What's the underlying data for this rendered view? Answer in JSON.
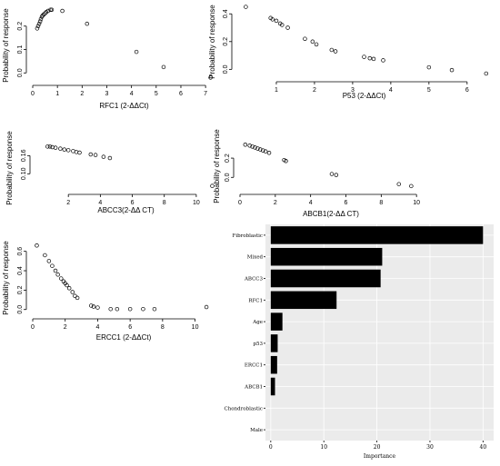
{
  "chart_data": [
    {
      "type": "scatter",
      "ylabel": "Probability of response",
      "xlabel": "RFC1 (2-ΔΔCt)",
      "xticks": [
        0,
        1,
        2,
        3,
        4,
        5,
        6,
        7
      ],
      "yticks": [
        0.0,
        0.1,
        0.2
      ],
      "xlim": [
        0,
        7.4
      ],
      "ylim": [
        -0.03,
        0.3
      ],
      "points": [
        [
          0.18,
          0.19
        ],
        [
          0.22,
          0.2
        ],
        [
          0.26,
          0.21
        ],
        [
          0.3,
          0.22
        ],
        [
          0.33,
          0.23
        ],
        [
          0.37,
          0.24
        ],
        [
          0.4,
          0.245
        ],
        [
          0.45,
          0.25
        ],
        [
          0.5,
          0.255
        ],
        [
          0.55,
          0.26
        ],
        [
          0.62,
          0.265
        ],
        [
          0.72,
          0.27
        ],
        [
          0.77,
          0.27
        ],
        [
          1.2,
          0.265
        ],
        [
          2.2,
          0.21
        ],
        [
          4.2,
          0.09
        ],
        [
          5.3,
          0.025
        ],
        [
          7.2,
          -0.02
        ]
      ]
    },
    {
      "type": "scatter",
      "ylabel": "Probability of response",
      "xlabel": "P53 (2-ΔΔCt)",
      "xticks": [
        1,
        2,
        3,
        4,
        5,
        6
      ],
      "yticks": [
        0.0,
        0.2,
        0.4
      ],
      "xlim": [
        0,
        6.6
      ],
      "ylim": [
        -0.05,
        0.48
      ],
      "points": [
        [
          0.2,
          0.45
        ],
        [
          0.85,
          0.37
        ],
        [
          0.9,
          0.36
        ],
        [
          1.0,
          0.35
        ],
        [
          1.1,
          0.33
        ],
        [
          1.15,
          0.32
        ],
        [
          1.3,
          0.3
        ],
        [
          1.75,
          0.22
        ],
        [
          1.95,
          0.2
        ],
        [
          2.05,
          0.18
        ],
        [
          2.45,
          0.14
        ],
        [
          2.55,
          0.13
        ],
        [
          3.3,
          0.09
        ],
        [
          3.45,
          0.08
        ],
        [
          3.55,
          0.075
        ],
        [
          3.8,
          0.065
        ],
        [
          5.0,
          0.015
        ],
        [
          5.6,
          -0.005
        ],
        [
          6.5,
          -0.03
        ]
      ]
    },
    {
      "type": "scatter",
      "ylabel": "Probability of response",
      "xlabel": "ABCC3(2-ΔΔ CT)",
      "xticks": [
        2,
        4,
        6,
        8,
        10
      ],
      "yticks": [
        0.1,
        0.16
      ],
      "xlim": [
        0,
        11.2
      ],
      "ylim": [
        0.05,
        0.2
      ],
      "points": [
        [
          0.7,
          0.19
        ],
        [
          0.85,
          0.19
        ],
        [
          1.0,
          0.188
        ],
        [
          1.2,
          0.186
        ],
        [
          1.5,
          0.183
        ],
        [
          1.75,
          0.18
        ],
        [
          2.0,
          0.178
        ],
        [
          2.3,
          0.175
        ],
        [
          2.5,
          0.172
        ],
        [
          2.7,
          0.17
        ],
        [
          3.4,
          0.164
        ],
        [
          3.7,
          0.162
        ],
        [
          4.2,
          0.156
        ],
        [
          4.6,
          0.152
        ],
        [
          11.0,
          0.06
        ]
      ]
    },
    {
      "type": "scatter",
      "ylabel": "Probability of response",
      "xlabel": "ABCB1(2-ΔΔ CT)",
      "xticks": [
        0,
        2,
        4,
        6,
        8,
        10
      ],
      "yticks": [
        0.0,
        0.2
      ],
      "xlim": [
        0,
        10.3
      ],
      "ylim": [
        -0.12,
        0.38
      ],
      "points": [
        [
          0.3,
          0.34
        ],
        [
          0.55,
          0.33
        ],
        [
          0.7,
          0.32
        ],
        [
          0.85,
          0.31
        ],
        [
          1.0,
          0.3
        ],
        [
          1.15,
          0.29
        ],
        [
          1.3,
          0.28
        ],
        [
          1.45,
          0.27
        ],
        [
          1.65,
          0.255
        ],
        [
          2.5,
          0.18
        ],
        [
          2.6,
          0.17
        ],
        [
          5.2,
          0.035
        ],
        [
          5.45,
          0.025
        ],
        [
          9.0,
          -0.07
        ],
        [
          9.7,
          -0.09
        ]
      ]
    },
    {
      "type": "scatter",
      "ylabel": "Probability of response",
      "xlabel": "ERCC1 (2-ΔΔCt)",
      "xticks": [
        0,
        2,
        4,
        6,
        8,
        10
      ],
      "yticks": [
        0.0,
        0.2,
        0.4,
        0.6
      ],
      "xlim": [
        0,
        11.2
      ],
      "ylim": [
        -0.04,
        0.7
      ],
      "points": [
        [
          0.25,
          0.66
        ],
        [
          0.75,
          0.56
        ],
        [
          1.0,
          0.5
        ],
        [
          1.2,
          0.45
        ],
        [
          1.4,
          0.4
        ],
        [
          1.55,
          0.36
        ],
        [
          1.75,
          0.32
        ],
        [
          1.9,
          0.29
        ],
        [
          2.0,
          0.27
        ],
        [
          2.1,
          0.25
        ],
        [
          2.25,
          0.22
        ],
        [
          2.45,
          0.18
        ],
        [
          2.6,
          0.14
        ],
        [
          2.75,
          0.12
        ],
        [
          3.6,
          0.04
        ],
        [
          3.75,
          0.03
        ],
        [
          4.0,
          0.02
        ],
        [
          4.8,
          0.005
        ],
        [
          5.2,
          0.005
        ],
        [
          6.0,
          0.005
        ],
        [
          6.8,
          0.005
        ],
        [
          7.5,
          0.005
        ],
        [
          10.7,
          0.025
        ]
      ]
    },
    {
      "type": "bar",
      "orientation": "horizontal",
      "xlabel": "Importance",
      "xticks": [
        0,
        10,
        20,
        30,
        40
      ],
      "xlim": [
        -1,
        42
      ],
      "categories": [
        "Fibroblastic",
        "Mixed",
        "ABCC3",
        "RFC1",
        "Age",
        "p53",
        "ERCC1",
        "ABCB1",
        "Chondroblastic",
        "Male"
      ],
      "values": [
        40,
        21,
        20.7,
        12.4,
        2.2,
        1.3,
        1.2,
        0.8,
        0,
        0
      ],
      "colors": {
        "bar": "#000000",
        "panel": "#ebebeb",
        "grid": "#ffffff"
      }
    }
  ]
}
